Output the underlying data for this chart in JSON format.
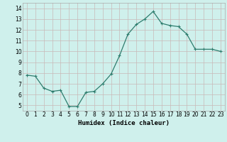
{
  "x": [
    0,
    1,
    2,
    3,
    4,
    5,
    6,
    7,
    8,
    9,
    10,
    11,
    12,
    13,
    14,
    15,
    16,
    17,
    18,
    19,
    20,
    21,
    22,
    23
  ],
  "y": [
    7.8,
    7.7,
    6.6,
    6.3,
    6.4,
    4.9,
    4.9,
    6.2,
    6.3,
    7.0,
    7.9,
    9.6,
    11.6,
    12.5,
    13.0,
    13.7,
    12.6,
    12.4,
    12.3,
    11.6,
    10.2,
    10.2,
    10.2,
    10.0
  ],
  "line_color": "#2e7d6e",
  "marker": "+",
  "marker_size": 3,
  "bg_color": "#cff0ec",
  "grid_color": "#c8b8b8",
  "xlabel": "Humidex (Indice chaleur)",
  "xlim": [
    -0.5,
    23.5
  ],
  "ylim": [
    4.5,
    14.5
  ],
  "yticks": [
    5,
    6,
    7,
    8,
    9,
    10,
    11,
    12,
    13,
    14
  ],
  "xticks": [
    0,
    1,
    2,
    3,
    4,
    5,
    6,
    7,
    8,
    9,
    10,
    11,
    12,
    13,
    14,
    15,
    16,
    17,
    18,
    19,
    20,
    21,
    22,
    23
  ],
  "tick_fontsize": 5.5,
  "xlabel_fontsize": 6.5,
  "linewidth": 0.9,
  "markeredgewidth": 0.8
}
